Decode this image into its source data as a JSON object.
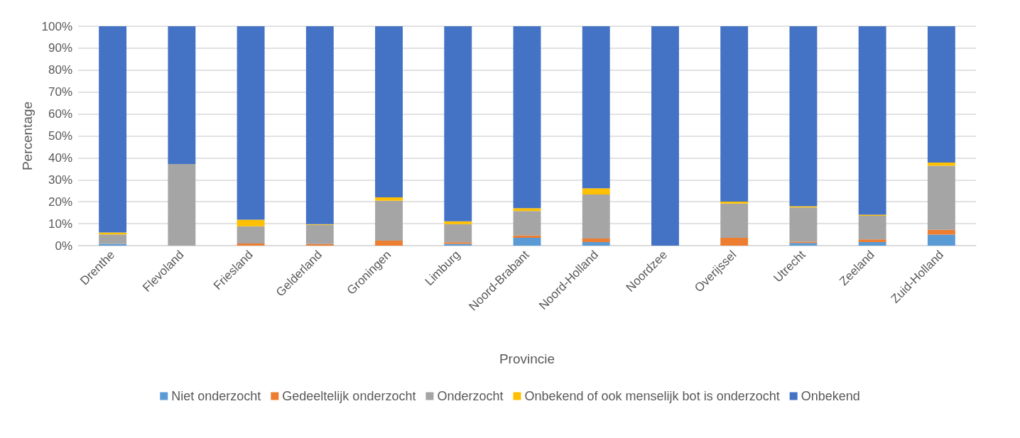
{
  "chart_data": {
    "type": "bar",
    "stacked": true,
    "xlabel": "Provincie",
    "ylabel": "Percentage",
    "categories": [
      "Drenthe",
      "Flevoland",
      "Friesland",
      "Gelderland",
      "Groningen",
      "Limburg",
      "Noord-Brabant",
      "Noord-Holland",
      "Noordzee",
      "Overijssel",
      "Utrecht",
      "Zeeland",
      "Zuid-Holland"
    ],
    "series": [
      {
        "name": "Niet onderzocht",
        "color": "#5b9bd5",
        "values": [
          0.8,
          0,
          0,
          0,
          0,
          0.8,
          3.6,
          1.6,
          0,
          0,
          1.2,
          1.6,
          5.0
        ]
      },
      {
        "name": "Gedeeltelijk onderzocht",
        "color": "#ed7d31",
        "values": [
          0,
          0,
          1.0,
          0.7,
          2.3,
          0.7,
          1.0,
          1.6,
          0,
          3.6,
          0.6,
          1.2,
          2.2
        ]
      },
      {
        "name": "Onderzocht",
        "color": "#a5a5a5",
        "values": [
          4.3,
          37.2,
          7.8,
          8.8,
          18.2,
          8.3,
          11.2,
          20.1,
          0,
          15.6,
          15.6,
          10.8,
          29.2
        ]
      },
      {
        "name": "Onbekend of ook menselijk bot is onderzocht",
        "color": "#ffc000",
        "values": [
          0.9,
          0,
          3.0,
          0.3,
          1.5,
          1.3,
          1.3,
          2.8,
          0,
          0.9,
          0.6,
          0.5,
          1.5
        ]
      },
      {
        "name": "Onbekend",
        "color": "#4472c4",
        "values": [
          94.0,
          62.8,
          88.2,
          90.2,
          78.0,
          88.9,
          82.9,
          73.9,
          100,
          79.9,
          82.0,
          85.9,
          62.1
        ]
      }
    ],
    "ylim": [
      0,
      100
    ],
    "yticks": [
      {
        "value": 0,
        "label": "0%"
      },
      {
        "value": 10,
        "label": "10%"
      },
      {
        "value": 20,
        "label": "20%"
      },
      {
        "value": 30,
        "label": "30%"
      },
      {
        "value": 40,
        "label": "40%"
      },
      {
        "value": 50,
        "label": "50%"
      },
      {
        "value": 60,
        "label": "60%"
      },
      {
        "value": 70,
        "label": "70%"
      },
      {
        "value": 80,
        "label": "80%"
      },
      {
        "value": 90,
        "label": "90%"
      },
      {
        "value": 100,
        "label": "100%"
      }
    ],
    "grid": "y",
    "legend": "bottom"
  }
}
